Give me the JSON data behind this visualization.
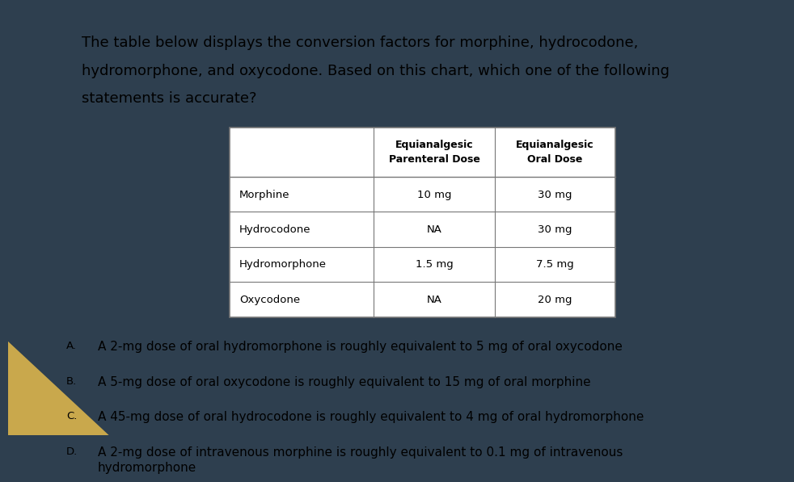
{
  "title_line1": "The table below displays the conversion factors for morphine, hydrocodone,",
  "title_line2": "hydromorphone, and oxycodone. Based on this chart, which one of the following",
  "title_line3": "statements is accurate?",
  "title_fontsize": 13.0,
  "bg_outer": "#2e3f4f",
  "bg_slide": "#ffffff",
  "bg_corner_gold": "#c9a84c",
  "table_headers": [
    "",
    "Equianalgesic\nParenteral Dose",
    "Equianalgesic\nOral Dose"
  ],
  "table_rows": [
    [
      "Morphine",
      "10 mg",
      "30 mg"
    ],
    [
      "Hydrocodone",
      "NA",
      "30 mg"
    ],
    [
      "Hydromorphone",
      "1.5 mg",
      "7.5 mg"
    ],
    [
      "Oxycodone",
      "NA",
      "20 mg"
    ]
  ],
  "answer_labels": [
    "A.",
    "B.",
    "C.",
    "D."
  ],
  "answers": [
    "A 2-mg dose of oral hydromorphone is roughly equivalent to 5 mg of oral oxycodone",
    "A 5-mg dose of oral oxycodone is roughly equivalent to 15 mg of oral morphine",
    "A 45-mg dose of oral hydrocodone is roughly equivalent to 4 mg of oral hydromorphone",
    "A 2-mg dose of intravenous morphine is roughly equivalent to 0.1 mg of intravenous\nhydromorphone"
  ],
  "answer_fontsize": 11.0,
  "label_fontsize": 9.5,
  "table_font_size": 9.5,
  "header_font_size": 9.0
}
